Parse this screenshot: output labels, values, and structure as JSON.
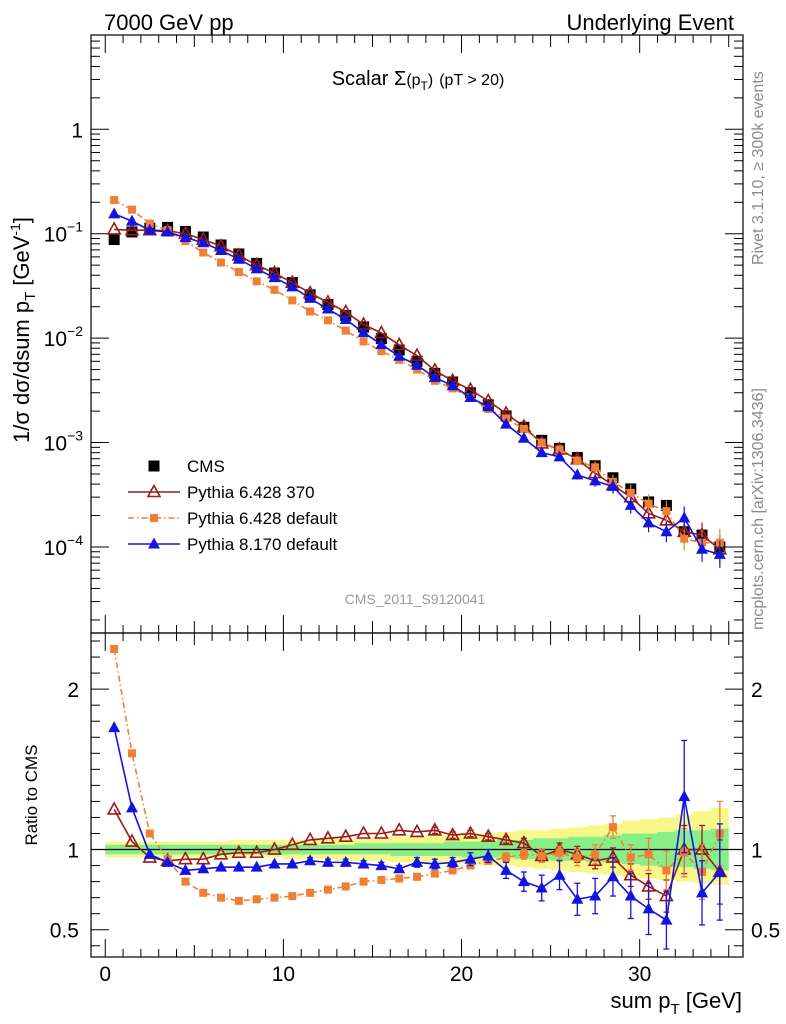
{
  "header": {
    "left": "7000 GeV pp",
    "right": "Underlying Event"
  },
  "side_labels": {
    "rivet": "Rivet 3.1.10, ≥ 300k events",
    "mcplots": "mcplots.cern.ch [arXiv:1306.3436]"
  },
  "analysis_id": "CMS_2011_S9120041",
  "chart_data": [
    {
      "type": "scatter",
      "title": "Scalar Σ(pT) (pT > 20)",
      "title_parts": {
        "main": "Scalar ",
        "sigma": "Σ",
        "paren_open": "(p",
        "sub": "T",
        "paren_close": ")",
        "cut": "(pT > 20)"
      },
      "ylabel": "1/σ dσ/dsum pT [GeV⁻¹]",
      "ylabel_parts": {
        "main": "1/σ dσ/dsum p",
        "sub": "T",
        "unit": "[GeV",
        "sup": "-1",
        "close": "]"
      },
      "yscale": "log",
      "xlim": [
        -0.8,
        35.8
      ],
      "ylim": [
        1.5e-05,
        8
      ],
      "y_tick_labels": [
        {
          "value": 1,
          "base": "1",
          "exp": ""
        },
        {
          "value": 0.1,
          "base": "10",
          "exp": "−1"
        },
        {
          "value": 0.01,
          "base": "10",
          "exp": "−2"
        },
        {
          "value": 0.001,
          "base": "10",
          "exp": "−3"
        },
        {
          "value": 0.0001,
          "base": "10",
          "exp": "−4"
        }
      ],
      "legend_position": "bottom-left",
      "x": [
        0.5,
        1.5,
        2.5,
        3.5,
        4.5,
        5.5,
        6.5,
        7.5,
        8.5,
        9.5,
        10.5,
        11.5,
        12.5,
        13.5,
        14.5,
        15.5,
        16.5,
        17.5,
        18.5,
        19.5,
        20.5,
        21.5,
        22.5,
        23.5,
        24.5,
        25.5,
        26.5,
        27.5,
        28.5,
        29.5,
        30.5,
        31.5,
        32.5,
        33.5,
        34.5
      ],
      "series": [
        {
          "name": "CMS",
          "color": "#000000",
          "marker": "square",
          "values": [
            0.088,
            0.104,
            0.113,
            0.115,
            0.105,
            0.093,
            0.078,
            0.064,
            0.052,
            0.042,
            0.034,
            0.026,
            0.021,
            0.0165,
            0.0128,
            0.0099,
            0.0077,
            0.006,
            0.0046,
            0.0038,
            0.003,
            0.0023,
            0.0018,
            0.0014,
            0.00105,
            0.00088,
            0.00072,
            0.0006,
            0.00046,
            0.00036,
            0.00027,
            0.00025,
            0.00014,
            0.00013,
            0.0001
          ]
        },
        {
          "name": "Pythia 6.428 370",
          "color": "#9b1b1b",
          "marker": "triangle-open",
          "values": [
            0.11,
            0.108,
            0.108,
            0.107,
            0.1,
            0.088,
            0.076,
            0.062,
            0.05,
            0.042,
            0.034,
            0.027,
            0.022,
            0.0178,
            0.0135,
            0.0112,
            0.0086,
            0.0068,
            0.0049,
            0.0039,
            0.0032,
            0.0025,
            0.0019,
            0.00142,
            0.00098,
            0.00086,
            0.00069,
            0.00051,
            0.00039,
            0.0003,
            0.00021,
            0.00018,
            0.00014,
            0.00013,
            9.5e-05
          ]
        },
        {
          "name": "Pythia 6.428 default",
          "color": "#f07f35",
          "marker": "square-small",
          "values": [
            0.21,
            0.17,
            0.125,
            0.108,
            0.085,
            0.066,
            0.053,
            0.043,
            0.035,
            0.029,
            0.023,
            0.018,
            0.0148,
            0.0118,
            0.0093,
            0.0075,
            0.0062,
            0.005,
            0.0039,
            0.0033,
            0.0027,
            0.0021,
            0.0017,
            0.00135,
            0.001,
            0.00086,
            0.00067,
            0.00058,
            0.00042,
            0.00033,
            0.00026,
            0.00022,
            0.00012,
            0.00011,
            0.00011
          ]
        },
        {
          "name": "Pythia 8.170 default",
          "color": "#1414e0",
          "marker": "triangle",
          "values": [
            0.155,
            0.132,
            0.108,
            0.104,
            0.092,
            0.082,
            0.069,
            0.057,
            0.046,
            0.038,
            0.031,
            0.024,
            0.019,
            0.0151,
            0.0113,
            0.0087,
            0.0067,
            0.0055,
            0.0042,
            0.0035,
            0.0027,
            0.0022,
            0.0015,
            0.0011,
            0.0008,
            0.00073,
            0.00049,
            0.00043,
            0.00038,
            0.00025,
            0.00017,
            0.00014,
            0.00019,
            9.5e-05,
            8.5e-05
          ]
        }
      ]
    },
    {
      "type": "scatter",
      "ylabel": "Ratio to CMS",
      "xlabel": "sum pT [GeV]",
      "xlabel_parts": {
        "main": "sum p",
        "sub": "T",
        "unit": " [GeV]"
      },
      "xlim": [
        -0.8,
        35.8
      ],
      "ylim": [
        0.33,
        2.35
      ],
      "x_tick_labels": [
        "0",
        "10",
        "20",
        "30"
      ],
      "x_tick_values": [
        0,
        10,
        20,
        30
      ],
      "y_tick_labels": [
        "2",
        "1",
        "0.5"
      ],
      "y_tick_values": [
        2,
        1,
        0.5
      ],
      "reference_line": 1,
      "band_colors": {
        "inner": "#88ee88",
        "outer": "#f8f88a"
      },
      "band_inner": [
        [
          0.97,
          1.03
        ],
        [
          0.97,
          1.03
        ],
        [
          0.97,
          1.03
        ],
        [
          0.97,
          1.03
        ],
        [
          0.97,
          1.03
        ],
        [
          0.97,
          1.03
        ],
        [
          0.97,
          1.03
        ],
        [
          0.97,
          1.03
        ],
        [
          0.97,
          1.03
        ],
        [
          0.97,
          1.03
        ],
        [
          0.97,
          1.03
        ],
        [
          0.97,
          1.03
        ],
        [
          0.97,
          1.03
        ],
        [
          0.97,
          1.03
        ],
        [
          0.97,
          1.04
        ],
        [
          0.97,
          1.04
        ],
        [
          0.96,
          1.04
        ],
        [
          0.96,
          1.04
        ],
        [
          0.96,
          1.04
        ],
        [
          0.96,
          1.05
        ],
        [
          0.95,
          1.05
        ],
        [
          0.95,
          1.05
        ],
        [
          0.95,
          1.06
        ],
        [
          0.94,
          1.06
        ],
        [
          0.94,
          1.07
        ],
        [
          0.93,
          1.07
        ],
        [
          0.93,
          1.08
        ],
        [
          0.92,
          1.08
        ],
        [
          0.92,
          1.09
        ],
        [
          0.91,
          1.1
        ],
        [
          0.9,
          1.1
        ],
        [
          0.89,
          1.11
        ],
        [
          0.89,
          1.12
        ],
        [
          0.88,
          1.12
        ],
        [
          0.87,
          1.13
        ]
      ],
      "band_outer": [
        [
          0.95,
          1.05
        ],
        [
          0.95,
          1.05
        ],
        [
          0.95,
          1.05
        ],
        [
          0.95,
          1.05
        ],
        [
          0.95,
          1.05
        ],
        [
          0.95,
          1.05
        ],
        [
          0.95,
          1.05
        ],
        [
          0.95,
          1.06
        ],
        [
          0.95,
          1.06
        ],
        [
          0.95,
          1.06
        ],
        [
          0.94,
          1.06
        ],
        [
          0.94,
          1.06
        ],
        [
          0.94,
          1.07
        ],
        [
          0.93,
          1.07
        ],
        [
          0.93,
          1.07
        ],
        [
          0.93,
          1.08
        ],
        [
          0.92,
          1.08
        ],
        [
          0.92,
          1.08
        ],
        [
          0.92,
          1.09
        ],
        [
          0.91,
          1.09
        ],
        [
          0.91,
          1.1
        ],
        [
          0.9,
          1.1
        ],
        [
          0.9,
          1.11
        ],
        [
          0.89,
          1.12
        ],
        [
          0.88,
          1.12
        ],
        [
          0.87,
          1.13
        ],
        [
          0.86,
          1.14
        ],
        [
          0.85,
          1.15
        ],
        [
          0.84,
          1.16
        ],
        [
          0.83,
          1.18
        ],
        [
          0.82,
          1.19
        ],
        [
          0.81,
          1.2
        ],
        [
          0.8,
          1.22
        ],
        [
          0.79,
          1.24
        ],
        [
          0.78,
          1.26
        ]
      ],
      "series": [
        {
          "name": "Pythia 6.428 370",
          "color": "#9b1b1b",
          "marker": "triangle-open",
          "values": [
            1.25,
            1.05,
            0.95,
            0.93,
            0.94,
            0.94,
            0.97,
            0.98,
            0.98,
            1.0,
            1.03,
            1.06,
            1.07,
            1.08,
            1.1,
            1.1,
            1.12,
            1.11,
            1.12,
            1.09,
            1.1,
            1.08,
            1.06,
            1.04,
            0.96,
            1.0,
            0.97,
            0.93,
            0.95,
            0.84,
            0.77,
            0.71,
            1.0,
            1.0,
            0.86
          ],
          "errors": [
            0.01,
            0.01,
            0.01,
            0.01,
            0.01,
            0.01,
            0.01,
            0.01,
            0.01,
            0.01,
            0.01,
            0.01,
            0.01,
            0.01,
            0.01,
            0.01,
            0.01,
            0.01,
            0.02,
            0.02,
            0.02,
            0.02,
            0.02,
            0.03,
            0.03,
            0.04,
            0.05,
            0.05,
            0.06,
            0.07,
            0.08,
            0.1,
            0.15,
            0.15,
            0.2
          ]
        },
        {
          "name": "Pythia 6.428 default",
          "color": "#f07f35",
          "marker": "square-small",
          "values": [
            2.25,
            1.6,
            1.1,
            0.94,
            0.8,
            0.73,
            0.7,
            0.68,
            0.69,
            0.7,
            0.71,
            0.73,
            0.75,
            0.77,
            0.8,
            0.81,
            0.82,
            0.83,
            0.85,
            0.87,
            0.9,
            0.93,
            0.95,
            0.97,
            0.96,
            0.98,
            0.95,
            0.97,
            1.14,
            0.95,
            0.97,
            0.87,
            0.98,
            0.86,
            1.1
          ],
          "errors": [
            0.01,
            0.01,
            0.01,
            0.01,
            0.01,
            0.01,
            0.01,
            0.01,
            0.01,
            0.01,
            0.01,
            0.01,
            0.01,
            0.01,
            0.01,
            0.01,
            0.01,
            0.02,
            0.02,
            0.02,
            0.02,
            0.02,
            0.03,
            0.03,
            0.04,
            0.04,
            0.05,
            0.06,
            0.07,
            0.08,
            0.1,
            0.12,
            0.15,
            0.17,
            0.2
          ]
        },
        {
          "name": "Pythia 8.170 default",
          "color": "#1414e0",
          "marker": "triangle",
          "values": [
            1.76,
            1.26,
            0.97,
            0.92,
            0.87,
            0.88,
            0.89,
            0.89,
            0.89,
            0.91,
            0.91,
            0.93,
            0.92,
            0.92,
            0.91,
            0.9,
            0.88,
            0.92,
            0.91,
            0.92,
            0.94,
            0.96,
            0.87,
            0.8,
            0.76,
            0.84,
            0.69,
            0.71,
            0.83,
            0.71,
            0.63,
            0.56,
            1.33,
            0.73,
            0.86
          ],
          "errors": [
            0.01,
            0.01,
            0.01,
            0.01,
            0.01,
            0.01,
            0.01,
            0.01,
            0.01,
            0.01,
            0.01,
            0.02,
            0.02,
            0.02,
            0.02,
            0.02,
            0.02,
            0.03,
            0.03,
            0.03,
            0.04,
            0.04,
            0.05,
            0.06,
            0.08,
            0.09,
            0.1,
            0.11,
            0.12,
            0.14,
            0.16,
            0.18,
            0.35,
            0.2,
            0.3
          ]
        }
      ]
    }
  ]
}
